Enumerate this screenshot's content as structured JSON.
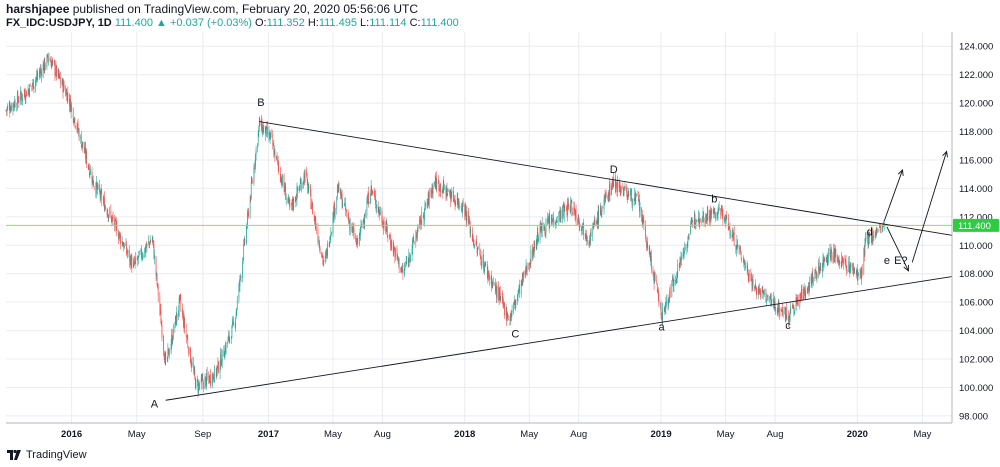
{
  "header": {
    "author": "harshjapee",
    "published_text": "published on TradingView.com, February 20, 2020 05:56:06 UTC",
    "symbol": "FX_IDC:USDJPY, 1D",
    "last": "111.400",
    "change": "+0.037 (+0.03%)",
    "o_label": "O:",
    "o_val": "111.352",
    "h_label": "H:",
    "h_val": "111.495",
    "l_label": "L:",
    "l_val": "111.114",
    "c_label": "C:",
    "c_val": "111.400"
  },
  "footer": {
    "brand": "TradingView",
    "logo_icon": "tradingview-logo-icon"
  },
  "colors": {
    "up": "#26a69a",
    "down": "#ef5350",
    "price_line": "#7ee07e",
    "price_badge": "#2ecc40",
    "grid": "#e9ecf1",
    "trendline": "#131722"
  },
  "chart_data": {
    "type": "candlestick",
    "y_axis": {
      "range": [
        97.5,
        125.0
      ],
      "ticks": [
        98.0,
        100.0,
        102.0,
        104.0,
        106.0,
        108.0,
        110.0,
        112.0,
        114.0,
        116.0,
        118.0,
        120.0,
        122.0,
        124.0
      ],
      "tick_labels": [
        "98.000",
        "100.000",
        "102.000",
        "104.000",
        "106.000",
        "108.000",
        "110.000",
        "112.000",
        "114.000",
        "116.000",
        "118.000",
        "120.000",
        "122.000",
        "124.000"
      ]
    },
    "x_axis": {
      "range": [
        "2015-09-01",
        "2020-06-25"
      ],
      "ticks": [
        "2016-01-01",
        "2016-05-01",
        "2016-09-01",
        "2017-01-01",
        "2017-05-01",
        "2017-08-01",
        "2018-01-01",
        "2018-05-01",
        "2018-08-01",
        "2019-01-01",
        "2019-05-01",
        "2019-08-01",
        "2020-01-01",
        "2020-05-01"
      ],
      "tick_labels": [
        "2016",
        "May",
        "Sep",
        "2017",
        "May",
        "Aug",
        "2018",
        "May",
        "Aug",
        "2019",
        "May",
        "Aug",
        "2020",
        "May"
      ]
    },
    "price_path": [
      [
        "2015-09-01",
        119.5
      ],
      [
        "2015-10-15",
        121.0
      ],
      [
        "2015-11-20",
        123.2
      ],
      [
        "2015-12-25",
        120.5
      ],
      [
        "2016-02-10",
        114.5
      ],
      [
        "2016-03-20",
        111.5
      ],
      [
        "2016-04-25",
        108.5
      ],
      [
        "2016-05-30",
        110.5
      ],
      [
        "2016-06-24",
        101.5
      ],
      [
        "2016-07-20",
        106.0
      ],
      [
        "2016-08-20",
        100.0
      ],
      [
        "2016-09-25",
        101.0
      ],
      [
        "2016-10-30",
        104.5
      ],
      [
        "2016-12-15",
        118.5
      ],
      [
        "2017-01-05",
        117.5
      ],
      [
        "2017-02-10",
        112.5
      ],
      [
        "2017-03-10",
        115.0
      ],
      [
        "2017-04-15",
        108.5
      ],
      [
        "2017-05-10",
        114.0
      ],
      [
        "2017-06-15",
        110.0
      ],
      [
        "2017-07-10",
        114.0
      ],
      [
        "2017-09-08",
        108.0
      ],
      [
        "2017-11-06",
        114.5
      ],
      [
        "2017-12-31",
        112.7
      ],
      [
        "2018-01-20",
        110.0
      ],
      [
        "2018-03-25",
        104.8
      ],
      [
        "2018-05-20",
        111.0
      ],
      [
        "2018-07-18",
        112.8
      ],
      [
        "2018-08-20",
        110.5
      ],
      [
        "2018-10-04",
        114.5
      ],
      [
        "2018-11-20",
        113.0
      ],
      [
        "2019-01-03",
        105.0
      ],
      [
        "2019-03-05",
        112.0
      ],
      [
        "2019-04-25",
        112.3
      ],
      [
        "2019-06-25",
        107.0
      ],
      [
        "2019-08-25",
        105.0
      ],
      [
        "2019-11-10",
        109.5
      ],
      [
        "2020-01-08",
        107.8
      ],
      [
        "2020-01-17",
        110.3
      ],
      [
        "2020-02-20",
        111.4
      ]
    ],
    "last_price": 111.4,
    "last_price_label": "111.400",
    "trendlines": [
      {
        "name": "upper",
        "from": [
          "2016-12-15",
          118.7
        ],
        "to": [
          "2020-06-25",
          110.7
        ]
      },
      {
        "name": "lower",
        "from": [
          "2016-06-24",
          99.1
        ],
        "to": [
          "2020-06-25",
          107.8
        ]
      }
    ],
    "arrows": [
      {
        "name": "breakout-up",
        "from": [
          "2020-02-20",
          111.7
        ],
        "to": [
          "2020-03-25",
          115.3
        ]
      },
      {
        "name": "dip-to-e",
        "from": [
          "2020-02-25",
          111.3
        ],
        "to": [
          "2020-04-05",
          108.2
        ]
      },
      {
        "name": "breakout-from-e",
        "from": [
          "2020-04-12",
          108.8
        ],
        "to": [
          "2020-06-15",
          116.6
        ]
      }
    ],
    "annotations": [
      {
        "text": "A",
        "at": [
          "2016-06-03",
          98.6
        ]
      },
      {
        "text": "B",
        "at": [
          "2016-12-18",
          119.8
        ]
      },
      {
        "text": "C",
        "at": [
          "2018-04-05",
          103.5
        ]
      },
      {
        "text": "D",
        "at": [
          "2018-10-05",
          115.1
        ]
      },
      {
        "text": "a",
        "at": [
          "2019-01-02",
          104.0
        ]
      },
      {
        "text": "b",
        "at": [
          "2019-04-10",
          113.0
        ]
      },
      {
        "text": "c",
        "at": [
          "2019-08-25",
          104.1
        ]
      },
      {
        "text": "d",
        "at": [
          "2020-01-24",
          110.7
        ]
      },
      {
        "text": "e",
        "at": [
          "2020-02-25",
          108.7
        ]
      },
      {
        "text": "E?",
        "at": [
          "2020-03-22",
          108.7
        ]
      }
    ],
    "grid": true
  }
}
